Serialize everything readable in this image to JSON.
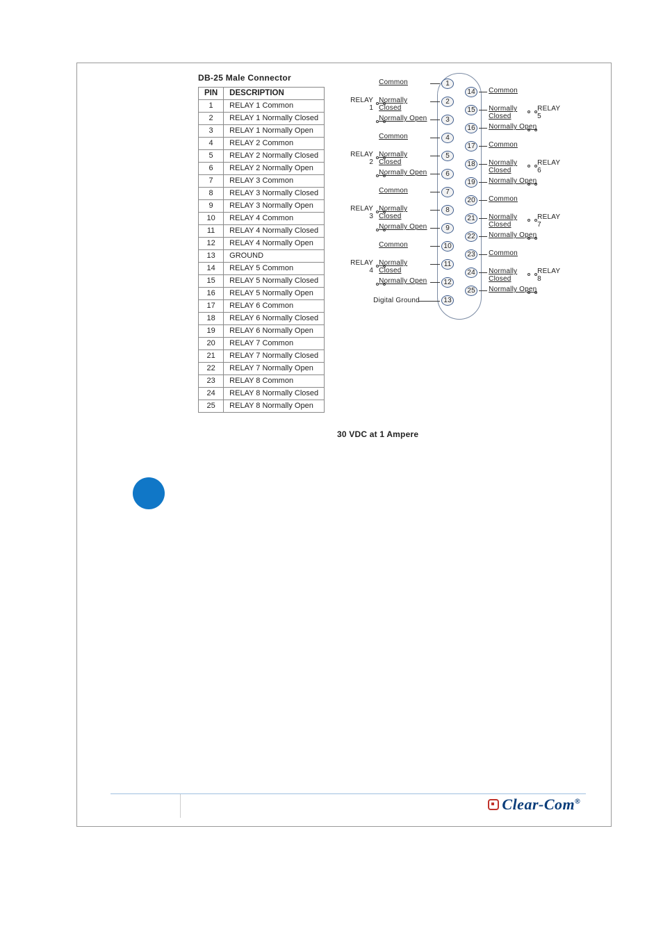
{
  "table_title": "DB-25 Male Connector",
  "headers": {
    "pin": "PIN",
    "desc": "DESCRIPTION"
  },
  "rows": [
    {
      "pin": "1",
      "desc": "RELAY 1 Common"
    },
    {
      "pin": "2",
      "desc": "RELAY 1 Normally Closed"
    },
    {
      "pin": "3",
      "desc": "RELAY 1 Normally Open"
    },
    {
      "pin": "4",
      "desc": "RELAY 2 Common"
    },
    {
      "pin": "5",
      "desc": "RELAY 2 Normally Closed"
    },
    {
      "pin": "6",
      "desc": "RELAY 2 Normally Open"
    },
    {
      "pin": "7",
      "desc": "RELAY 3 Common"
    },
    {
      "pin": "8",
      "desc": "RELAY 3 Normally Closed"
    },
    {
      "pin": "9",
      "desc": "RELAY 3 Normally Open"
    },
    {
      "pin": "10",
      "desc": "RELAY 4 Common"
    },
    {
      "pin": "11",
      "desc": "RELAY 4 Normally Closed"
    },
    {
      "pin": "12",
      "desc": "RELAY 4 Normally Open"
    },
    {
      "pin": "13",
      "desc": "GROUND"
    },
    {
      "pin": "14",
      "desc": "RELAY 5 Common"
    },
    {
      "pin": "15",
      "desc": "RELAY 5 Normally Closed"
    },
    {
      "pin": "16",
      "desc": "RELAY 5 Normally Open"
    },
    {
      "pin": "17",
      "desc": "RELAY 6 Common"
    },
    {
      "pin": "18",
      "desc": "RELAY 6 Normally Closed"
    },
    {
      "pin": "19",
      "desc": "RELAY 6 Normally Open"
    },
    {
      "pin": "20",
      "desc": "RELAY 7 Common"
    },
    {
      "pin": "21",
      "desc": "RELAY 7 Normally Closed"
    },
    {
      "pin": "22",
      "desc": "RELAY 7 Normally Open"
    },
    {
      "pin": "23",
      "desc": "RELAY 8 Common"
    },
    {
      "pin": "24",
      "desc": "RELAY 8 Normally Closed"
    },
    {
      "pin": "25",
      "desc": "RELAY 8 Normally Open"
    }
  ],
  "diagram": {
    "pin_border": "#3b5a8c",
    "pin_fill": "#f2f2f2",
    "outline_color": "#7a8aa3",
    "left_relays": [
      {
        "label": "RELAY 1",
        "signals": [
          "Common",
          "Normally Closed",
          "Normally Open"
        ],
        "pins": [
          1,
          2,
          3
        ]
      },
      {
        "label": "RELAY 2",
        "signals": [
          "Common",
          "Normally Closed",
          "Normally Open"
        ],
        "pins": [
          4,
          5,
          6
        ]
      },
      {
        "label": "RELAY 3",
        "signals": [
          "Common",
          "Normally Closed",
          "Normally Open"
        ],
        "pins": [
          7,
          8,
          9
        ]
      },
      {
        "label": "RELAY 4",
        "signals": [
          "Common",
          "Normally Closed",
          "Normally Open"
        ],
        "pins": [
          10,
          11,
          12
        ]
      }
    ],
    "right_relays": [
      {
        "label": "RELAY 5",
        "signals": [
          "Common",
          "Normally Closed",
          "Normally Open"
        ],
        "pins": [
          14,
          15,
          16
        ]
      },
      {
        "label": "RELAY 6",
        "signals": [
          "Common",
          "Normally Closed",
          "Normally Open"
        ],
        "pins": [
          17,
          18,
          19
        ]
      },
      {
        "label": "RELAY 7",
        "signals": [
          "Common",
          "Normally Closed",
          "Normally Open"
        ],
        "pins": [
          20,
          21,
          22
        ]
      },
      {
        "label": "RELAY 8",
        "signals": [
          "Common",
          "Normally Closed",
          "Normally Open"
        ],
        "pins": [
          23,
          24,
          25
        ]
      }
    ],
    "ground_label": "Digital Ground",
    "ground_pin": 13,
    "rating": "30 VDC at 1 Ampere"
  },
  "note_dot_color": "#1077c7",
  "footer": {
    "rule_color": "#9fbfe0",
    "brand": "Clear-Com",
    "brand_color": "#0a3d7a",
    "logo_accent": "#c1322a"
  }
}
